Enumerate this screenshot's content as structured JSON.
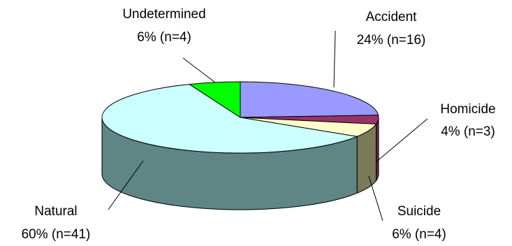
{
  "chart_data": {
    "type": "pie",
    "title": "",
    "legend": "none",
    "slices": [
      {
        "name": "Accident",
        "percent": 24,
        "n": 16,
        "value_label": "24% (n=16)",
        "color": "#9999ff",
        "side_color": "#6666b0"
      },
      {
        "name": "Homicide",
        "percent": 4,
        "n": 3,
        "value_label": "4% (n=3)",
        "color": "#993366",
        "side_color": "#6b2347"
      },
      {
        "name": "Suicide",
        "percent": 6,
        "n": 4,
        "value_label": "6% (n=4)",
        "color": "#ffffcc",
        "side_color": "#7a7a5a"
      },
      {
        "name": "Natural",
        "percent": 60,
        "n": 41,
        "value_label": "60% (n=41)",
        "color": "#ccffff",
        "side_color": "#5f8585"
      },
      {
        "name": "Undetermined",
        "percent": 6,
        "n": 4,
        "value_label": "6% (n=4)",
        "color": "#00ff00",
        "side_color": "#00a000"
      }
    ]
  }
}
